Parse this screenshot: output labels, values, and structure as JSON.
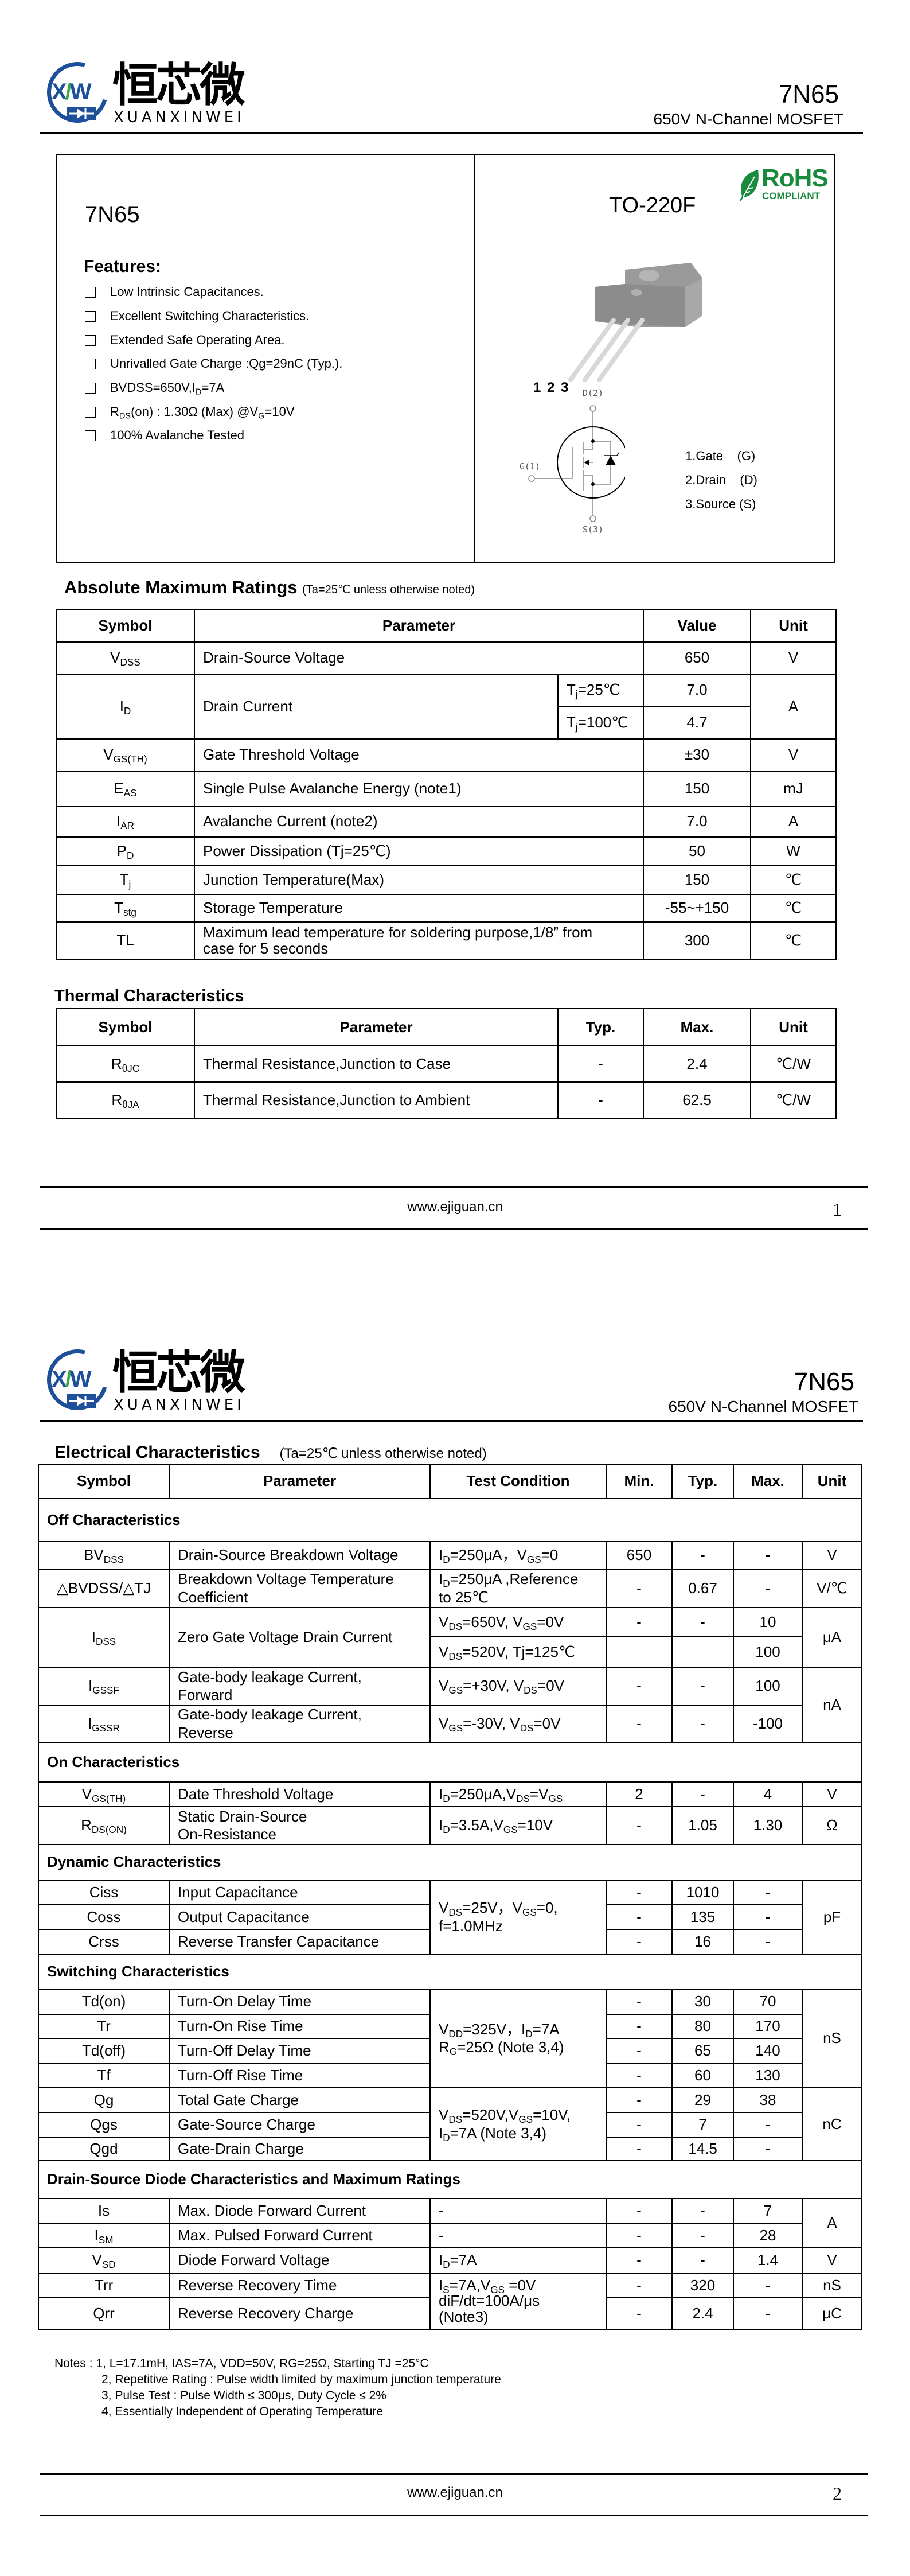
{
  "logo": {
    "cn": "恒芯微",
    "en": "XUANXINWEI",
    "mark": "XW",
    "colors": {
      "blue": "#1d4f9a",
      "green": "#3aa845"
    }
  },
  "header": {
    "part": "7N65",
    "subtitle": "650V N-Channel MOSFET"
  },
  "page1": {
    "part_title": "7N65",
    "features_title": "Features:",
    "features": [
      "Low Intrinsic Capacitances.",
      "Excellent Switching Characteristics.",
      "Extended Safe Operating Area.",
      "Unrivalled Gate Charge :Qg=29nC (Typ.).",
      "BVDSS=650V,I_{D}=7A",
      "R_{DS}(on) : 1.30Ω (Max) @V_{G}=10V",
      "100% Avalanche Tested"
    ],
    "package": "TO-220F",
    "rohs": {
      "main": "RoHS",
      "sub": "COMPLIANT",
      "color": "#1a8a3c"
    },
    "pin_numbers": "1 2 3",
    "schematic": {
      "drain": "D(2)",
      "gate": "G(1)",
      "source": "S(3)"
    },
    "pins": [
      "1.Gate    (G)",
      "2.Drain    (D)",
      "3.Source (S)"
    ],
    "amr": {
      "title": "Absolute Maximum Ratings",
      "note": "(Ta=25℃ unless otherwise noted)",
      "headers": [
        "Symbol",
        "Parameter",
        "Value",
        "Unit"
      ],
      "rows": [
        {
          "sym": "V_{DSS}",
          "param": "Drain-Source Voltage",
          "value": "650",
          "unit": "V"
        },
        {
          "sym": "I_{D}",
          "param": "Drain Current",
          "cond1": "T_{j}=25℃",
          "value": "7.0",
          "cond2": "T_{j}=100℃",
          "value2": "4.7",
          "unit": "A"
        },
        {
          "sym": "V_{GS(TH)}",
          "param": "Gate Threshold Voltage",
          "value": "±30",
          "unit": "V"
        },
        {
          "sym": "E_{AS}",
          "param": "Single Pulse Avalanche Energy (note1)",
          "value": "150",
          "unit": "mJ"
        },
        {
          "sym": "I_{AR}",
          "param": "Avalanche Current (note2)",
          "value": "7.0",
          "unit": "A"
        },
        {
          "sym": "P_{D}",
          "param": "Power Dissipation (Tj=25℃)",
          "value": "50",
          "unit": "W"
        },
        {
          "sym": "T_{j}",
          "param": "Junction Temperature(Max)",
          "value": "150",
          "unit": "℃"
        },
        {
          "sym": "T_{stg}",
          "param": "Storage Temperature",
          "value": "-55~+150",
          "unit": "℃"
        },
        {
          "sym": "TL",
          "param": "Maximum lead temperature for soldering purpose,1/8” from\ncase for 5 seconds",
          "value": "300",
          "unit": "℃"
        }
      ]
    },
    "thermal": {
      "title": "Thermal Characteristics",
      "headers": [
        "Symbol",
        "Parameter",
        "Typ.",
        "Max.",
        "Unit"
      ],
      "rows": [
        {
          "sym": "R_{θJC}",
          "param": "Thermal Resistance,Junction to Case",
          "typ": "-",
          "max": "2.4",
          "unit": "℃/W"
        },
        {
          "sym": "R_{θJA}",
          "param": "Thermal Resistance,Junction to Ambient",
          "typ": "-",
          "max": "62.5",
          "unit": "℃/W"
        }
      ]
    },
    "footer": {
      "url": "www.ejiguan.cn",
      "page": "1"
    }
  },
  "page2": {
    "elec": {
      "title": "Electrical Characteristics",
      "note": "(Ta=25℃ unless otherwise noted)",
      "headers": [
        "Symbol",
        "Parameter",
        "Test Condition",
        "Min.",
        "Typ.",
        "Max.",
        "Unit"
      ],
      "sections": [
        "Off Characteristics",
        "On Characteristics",
        "Dynamic Characteristics",
        "Switching Characteristics",
        "Drain-Source Diode Characteristics and Maximum Ratings"
      ],
      "rows": [
        {
          "sym": "BV_{DSS}",
          "param": "Drain-Source Breakdown Voltage",
          "cond": "I_{D}=250μA，V_{GS}=0",
          "min": "650",
          "typ": "-",
          "max": "-",
          "unit": "V"
        },
        {
          "sym": "△BVDSS/△TJ",
          "param": "Breakdown Voltage Temperature\nCoefficient",
          "cond": "I_{D}=250μA ,Reference\n  to 25℃",
          "min": "-",
          "typ": "0.67",
          "max": "-",
          "unit": "V/℃"
        },
        {
          "sym": "I_{DSS}",
          "param": "Zero Gate Voltage Drain Current",
          "cond": "V_{DS}=650V, V_{GS}=0V",
          "min": "-",
          "typ": "-",
          "max": "10",
          "cond2": "V_{DS}=520V, Tj=125℃",
          "max2": "100",
          "unit": "μA"
        },
        {
          "sym": "I_{GSSF}",
          "param": "Gate-body leakage Current,\nForward",
          "cond": "V_{GS}=+30V, V_{DS}=0V",
          "min": "-",
          "typ": "-",
          "max": "100",
          "unit": "nA"
        },
        {
          "sym": "I_{GSSR}",
          "param": "Gate-body leakage Current,\nReverse",
          "cond": "V_{GS}=-30V, V_{DS}=0V",
          "min": "-",
          "typ": "-",
          "max": "-100"
        },
        {
          "sym": "V_{GS(TH)}",
          "param": "Date Threshold Voltage",
          "cond": "I_{D}=250μA,V_{DS}=V_{GS}",
          "min": "2",
          "typ": "-",
          "max": "4",
          "unit": "V"
        },
        {
          "sym": "R_{DS(ON)}",
          "param": "Static Drain-Source\nOn-Resistance",
          "cond": "I_{D}=3.5A,V_{GS}=10V",
          "min": "-",
          "typ": "1.05",
          "max": "1.30",
          "unit": "Ω"
        },
        {
          "sym": "Ciss",
          "param": "Input Capacitance",
          "cond": "V_{DS}=25V，V_{GS}=0,\nf=1.0MHz",
          "min": "-",
          "typ": "1010",
          "max": "-",
          "unit": "pF"
        },
        {
          "sym": "Coss",
          "param": "Output Capacitance",
          "min": "-",
          "typ": "135",
          "max": "-"
        },
        {
          "sym": "Crss",
          "param": "Reverse Transfer Capacitance",
          "min": "-",
          "typ": "16",
          "max": "-"
        },
        {
          "sym": "Td(on)",
          "param": "Turn-On Delay Time",
          "cond": "V_{DD}=325V，I_{D}=7A\nR_{G}=25Ω (Note 3,4)",
          "min": "-",
          "typ": "30",
          "max": "70",
          "unit": "nS"
        },
        {
          "sym": "Tr",
          "param": "Turn-On Rise Time",
          "min": "-",
          "typ": "80",
          "max": "170"
        },
        {
          "sym": "Td(off)",
          "param": "Turn-Off Delay Time",
          "min": "-",
          "typ": "65",
          "max": "140"
        },
        {
          "sym": "Tf",
          "param": "Turn-Off Rise Time",
          "min": "-",
          "typ": "60",
          "max": "130"
        },
        {
          "sym": "Qg",
          "param": "Total Gate Charge",
          "cond": "V_{DS}=520V,V_{GS}=10V,\nI_{D}=7A (Note 3,4)",
          "min": "-",
          "typ": "29",
          "max": "38",
          "unit": "nC"
        },
        {
          "sym": "Qgs",
          "param": "Gate-Source Charge",
          "min": "-",
          "typ": "7",
          "max": "-"
        },
        {
          "sym": "Qgd",
          "param": "Gate-Drain Charge",
          "min": "-",
          "typ": "14.5",
          "max": "-"
        },
        {
          "sym": "Is",
          "param": "Max. Diode Forward Current",
          "cond": "-",
          "min": "-",
          "typ": "-",
          "max": "7",
          "unit": "A"
        },
        {
          "sym": "I_{SM}",
          "param": "Max. Pulsed Forward Current",
          "cond": "-",
          "min": "-",
          "typ": "-",
          "max": "28"
        },
        {
          "sym": "V_{SD}",
          "param": "Diode Forward Voltage",
          "cond": "I_{D}=7A",
          "min": "-",
          "typ": "-",
          "max": "1.4",
          "unit": "V"
        },
        {
          "sym": "Trr",
          "param": "Reverse Recovery Time",
          "cond": "I_{S}=7A,V_{GS} =0V\ndiF/dt=100A/μs\n(Note3)",
          "min": "-",
          "typ": "320",
          "max": "-",
          "unit": "nS"
        },
        {
          "sym": "Qrr",
          "param": "Reverse Recovery Charge",
          "min": "-",
          "typ": "2.4",
          "max": "-",
          "unit": "μC"
        }
      ]
    },
    "notes": [
      "Notes : 1, L=17.1mH, IAS=7A, VDD=50V, RG=25Ω, Starting TJ =25°C",
      "2, Repetitive Rating : Pulse width limited by maximum junction temperature",
      "3, Pulse Test : Pulse Width ≤ 300μs, Duty Cycle ≤ 2%",
      "4, Essentially Independent of Operating Temperature"
    ],
    "footer": {
      "url": "www.ejiguan.cn",
      "page": "2"
    }
  }
}
